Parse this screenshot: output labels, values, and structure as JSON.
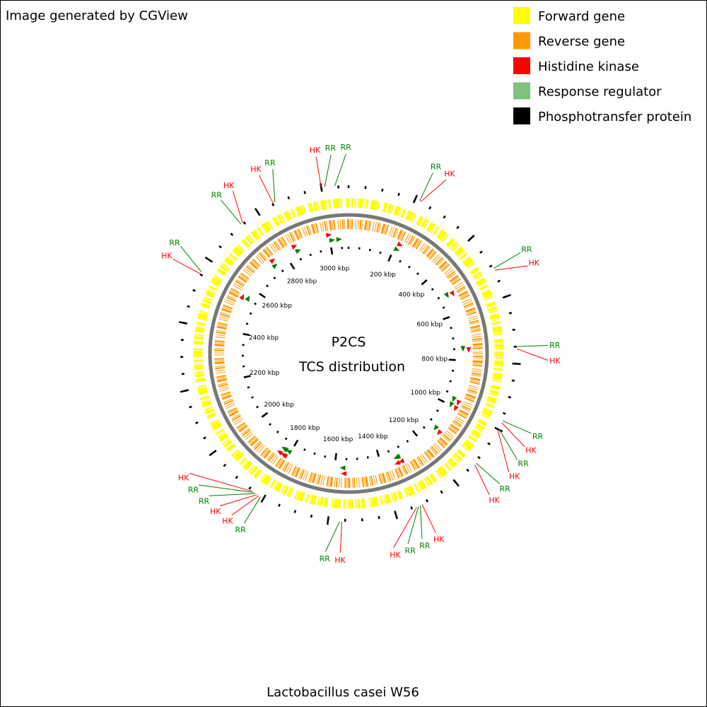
{
  "header": {
    "credit": "Image generated by CGView"
  },
  "legend": [
    {
      "label": "Forward gene",
      "color": "#ffff00"
    },
    {
      "label": "Reverse gene",
      "color": "#ff9900"
    },
    {
      "label": "Histidine kinase",
      "color": "#ff0000"
    },
    {
      "label": "Response regulator",
      "color": "#80c080"
    },
    {
      "label": "Phosphotransfer protein",
      "color": "#000000"
    }
  ],
  "map": {
    "title_lines": [
      "P2CS",
      "TCS distribution"
    ],
    "genome_name": "Lactobacillus casei W56",
    "length_kbp": 3080,
    "tick_labels": [
      {
        "value": 200,
        "label": "200 kbp"
      },
      {
        "value": 400,
        "label": "400 kbp"
      },
      {
        "value": 600,
        "label": "600 kbp"
      },
      {
        "value": 800,
        "label": "800 kbp"
      },
      {
        "value": 1000,
        "label": "1000 kbp"
      },
      {
        "value": 1200,
        "label": "1200 kbp"
      },
      {
        "value": 1400,
        "label": "1400 kbp"
      },
      {
        "value": 1600,
        "label": "1600 kbp"
      },
      {
        "value": 1800,
        "label": "1800 kbp"
      },
      {
        "value": 2000,
        "label": "2000 kbp"
      },
      {
        "value": 2200,
        "label": "2200 kbp"
      },
      {
        "value": 2400,
        "label": "2400 kbp"
      },
      {
        "value": 2600,
        "label": "2600 kbp"
      },
      {
        "value": 2800,
        "label": "2800 kbp"
      },
      {
        "value": 3000,
        "label": "3000 kbp"
      }
    ],
    "annotations": [
      {
        "label": "RR",
        "color": "#008000",
        "position": 214
      },
      {
        "label": "HK",
        "color": "#ff0000",
        "position": 218
      },
      {
        "label": "RR",
        "color": "#008000",
        "position": 510
      },
      {
        "label": "HK",
        "color": "#ff0000",
        "position": 516
      },
      {
        "label": "RR",
        "color": "#008000",
        "position": 750
      },
      {
        "label": "HK",
        "color": "#ff0000",
        "position": 756
      },
      {
        "label": "RR",
        "color": "#008000",
        "position": 972
      },
      {
        "label": "HK",
        "color": "#ff0000",
        "position": 978
      },
      {
        "label": "RR",
        "color": "#008000",
        "position": 998
      },
      {
        "label": "HK",
        "color": "#ff0000",
        "position": 1004
      },
      {
        "label": "RR",
        "color": "#008000",
        "position": 1118
      },
      {
        "label": "HK",
        "color": "#ff0000",
        "position": 1124
      },
      {
        "label": "HK",
        "color": "#ff0000",
        "position": 1318
      },
      {
        "label": "RR",
        "color": "#008000",
        "position": 1324
      },
      {
        "label": "RR",
        "color": "#008000",
        "position": 1330
      },
      {
        "label": "HK",
        "color": "#ff0000",
        "position": 1336
      },
      {
        "label": "HK",
        "color": "#ff0000",
        "position": 1560
      },
      {
        "label": "RR",
        "color": "#008000",
        "position": 1566
      },
      {
        "label": "RR",
        "color": "#008000",
        "position": 1810
      },
      {
        "label": "HK",
        "color": "#ff0000",
        "position": 1816
      },
      {
        "label": "HK",
        "color": "#ff0000",
        "position": 1822
      },
      {
        "label": "RR",
        "color": "#008000",
        "position": 1828
      },
      {
        "label": "RR",
        "color": "#008000",
        "position": 1834
      },
      {
        "label": "HK",
        "color": "#ff0000",
        "position": 1840
      },
      {
        "label": "HK",
        "color": "#ff0000",
        "position": 2552
      },
      {
        "label": "RR",
        "color": "#008000",
        "position": 2558
      },
      {
        "label": "RR",
        "color": "#008000",
        "position": 2740
      },
      {
        "label": "HK",
        "color": "#ff0000",
        "position": 2746
      },
      {
        "label": "HK",
        "color": "#ff0000",
        "position": 2852
      },
      {
        "label": "RR",
        "color": "#008000",
        "position": 2858
      },
      {
        "label": "HK",
        "color": "#ff0000",
        "position": 3000
      },
      {
        "label": "RR",
        "color": "#008000",
        "position": 3010
      },
      {
        "label": "RR",
        "color": "#008000",
        "position": 3040
      }
    ]
  }
}
